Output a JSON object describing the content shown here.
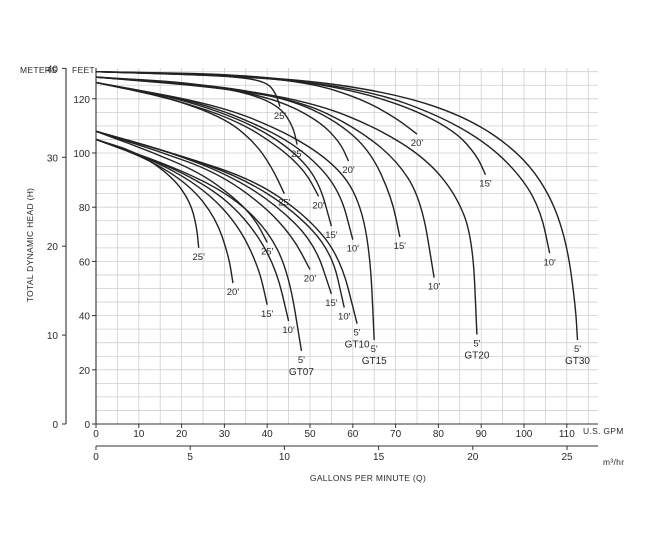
{
  "chart_data": {
    "type": "line",
    "units": {
      "meters_label": "METERS",
      "feet_label": "FEET",
      "gpm_label": "U.S. GPM",
      "m3hr_label": "m³/hr"
    },
    "xlabel": "GALLONS PER MINUTE (Q)",
    "ylabel": "TOTAL DYNAMIC HEAD (H)",
    "x_gpm_ticks": [
      0,
      10,
      20,
      30,
      40,
      50,
      60,
      70,
      80,
      90,
      100,
      110
    ],
    "x_m3hr_ticks": [
      0,
      5,
      10,
      15,
      20,
      25
    ],
    "y_feet_ticks": [
      0,
      20,
      40,
      60,
      80,
      100,
      120
    ],
    "y_meters_ticks": [
      0,
      10,
      20,
      30,
      40
    ],
    "xlim_gpm": [
      0,
      120
    ],
    "ylim_feet": [
      0,
      135
    ],
    "grid": true,
    "models": [
      "GT07",
      "GT10",
      "GT15",
      "GT20",
      "GT30"
    ],
    "series": [
      {
        "model": "GT07",
        "label": "25'",
        "points": [
          [
            0,
            105
          ],
          [
            10,
            100
          ],
          [
            18,
            91
          ],
          [
            22,
            82
          ],
          [
            23.5,
            73
          ],
          [
            24,
            65
          ]
        ]
      },
      {
        "model": "GT07",
        "label": "20'",
        "points": [
          [
            0,
            105
          ],
          [
            12,
            98
          ],
          [
            22,
            88
          ],
          [
            28,
            76
          ],
          [
            31,
            62
          ],
          [
            32,
            52
          ]
        ]
      },
      {
        "model": "GT07",
        "label": "15'",
        "points": [
          [
            0,
            105
          ],
          [
            14,
            97
          ],
          [
            25,
            87
          ],
          [
            33,
            74
          ],
          [
            38,
            58
          ],
          [
            40,
            44
          ]
        ]
      },
      {
        "model": "GT07",
        "label": "10'",
        "points": [
          [
            0,
            105
          ],
          [
            16,
            96
          ],
          [
            28,
            86
          ],
          [
            36,
            74
          ],
          [
            42,
            58
          ],
          [
            45,
            38
          ]
        ]
      },
      {
        "model": "GT07",
        "label": "5'",
        "points": [
          [
            0,
            105
          ],
          [
            18,
            95
          ],
          [
            31,
            85
          ],
          [
            40,
            72
          ],
          [
            45,
            56
          ],
          [
            48,
            27
          ]
        ]
      },
      {
        "model": "GT10",
        "label": "25'",
        "points": [
          [
            0,
            108
          ],
          [
            12,
            101
          ],
          [
            24,
            93
          ],
          [
            32,
            84
          ],
          [
            37,
            76
          ],
          [
            40,
            67
          ]
        ]
      },
      {
        "model": "GT10",
        "label": "20'",
        "points": [
          [
            0,
            108
          ],
          [
            14,
            101
          ],
          [
            28,
            93
          ],
          [
            39,
            81
          ],
          [
            46,
            69
          ],
          [
            50,
            57
          ]
        ]
      },
      {
        "model": "GT10",
        "label": "15'",
        "points": [
          [
            0,
            108
          ],
          [
            16,
            101
          ],
          [
            31,
            92
          ],
          [
            42,
            81
          ],
          [
            51,
            67
          ],
          [
            55,
            48
          ]
        ]
      },
      {
        "model": "GT10",
        "label": "10'",
        "points": [
          [
            0,
            108
          ],
          [
            18,
            100
          ],
          [
            34,
            91
          ],
          [
            46,
            79
          ],
          [
            55,
            64
          ],
          [
            58,
            43
          ]
        ]
      },
      {
        "model": "GT10",
        "label": "5'",
        "points": [
          [
            0,
            108
          ],
          [
            20,
            99
          ],
          [
            37,
            90
          ],
          [
            49,
            77
          ],
          [
            57,
            62
          ],
          [
            61,
            37
          ]
        ]
      },
      {
        "model": "GT15",
        "label": "25'",
        "points": [
          [
            0,
            126
          ],
          [
            16,
            121
          ],
          [
            30,
            113
          ],
          [
            37,
            104
          ],
          [
            41,
            95
          ],
          [
            44,
            85
          ]
        ]
      },
      {
        "model": "GT15",
        "label": "20'",
        "points": [
          [
            0,
            126
          ],
          [
            18,
            120
          ],
          [
            33,
            112
          ],
          [
            43,
            102
          ],
          [
            49,
            93
          ],
          [
            52,
            84
          ]
        ]
      },
      {
        "model": "GT15",
        "label": "15'",
        "points": [
          [
            0,
            126
          ],
          [
            20,
            120
          ],
          [
            36,
            111
          ],
          [
            46,
            101
          ],
          [
            52,
            90
          ],
          [
            55,
            73
          ]
        ]
      },
      {
        "model": "GT15",
        "label": "10'",
        "points": [
          [
            0,
            126
          ],
          [
            24,
            119
          ],
          [
            40,
            109
          ],
          [
            50,
            99
          ],
          [
            57,
            86
          ],
          [
            60,
            68
          ]
        ]
      },
      {
        "model": "GT15",
        "label": "5'",
        "points": [
          [
            0,
            126
          ],
          [
            28,
            118
          ],
          [
            44,
            108
          ],
          [
            55,
            97
          ],
          [
            61,
            85
          ],
          [
            64,
            65
          ],
          [
            65,
            31
          ]
        ]
      },
      {
        "model": "GT20",
        "label": "25'",
        "points": [
          [
            0,
            128
          ],
          [
            22,
            126
          ],
          [
            36,
            122
          ],
          [
            43,
            117
          ],
          [
            46,
            110
          ],
          [
            47,
            103
          ]
        ]
      },
      {
        "model": "GT20",
        "label": "20'",
        "points": [
          [
            0,
            128
          ],
          [
            26,
            125
          ],
          [
            42,
            120
          ],
          [
            52,
            112
          ],
          [
            57,
            104
          ],
          [
            59,
            97
          ]
        ]
      },
      {
        "model": "GT20",
        "label": "15'",
        "points": [
          [
            0,
            128
          ],
          [
            28,
            125
          ],
          [
            45,
            120
          ],
          [
            56,
            112
          ],
          [
            64,
            101
          ],
          [
            69,
            84
          ],
          [
            71,
            69
          ]
        ]
      },
      {
        "model": "GT20",
        "label": "10'",
        "points": [
          [
            0,
            128
          ],
          [
            30,
            124
          ],
          [
            48,
            119
          ],
          [
            60,
            110
          ],
          [
            70,
            98
          ],
          [
            76,
            83
          ],
          [
            79,
            54
          ]
        ]
      },
      {
        "model": "GT20",
        "label": "5'",
        "points": [
          [
            0,
            128
          ],
          [
            32,
            124
          ],
          [
            52,
            118
          ],
          [
            66,
            109
          ],
          [
            77,
            98
          ],
          [
            84,
            85
          ],
          [
            88,
            69
          ],
          [
            89,
            33
          ]
        ]
      },
      {
        "model": "GT30",
        "label": "25'",
        "points": [
          [
            0,
            130
          ],
          [
            22,
            129
          ],
          [
            34,
            128
          ],
          [
            40,
            126
          ],
          [
            42,
            122
          ],
          [
            43,
            117
          ]
        ]
      },
      {
        "model": "GT30",
        "label": "20'",
        "points": [
          [
            0,
            130
          ],
          [
            30,
            129
          ],
          [
            50,
            126
          ],
          [
            62,
            120
          ],
          [
            70,
            113
          ],
          [
            75,
            107
          ]
        ]
      },
      {
        "model": "GT30",
        "label": "15'",
        "points": [
          [
            0,
            130
          ],
          [
            36,
            129
          ],
          [
            58,
            124
          ],
          [
            73,
            117
          ],
          [
            84,
            108
          ],
          [
            89,
            99
          ],
          [
            91,
            92
          ]
        ]
      },
      {
        "model": "GT30",
        "label": "10'",
        "points": [
          [
            0,
            130
          ],
          [
            40,
            128
          ],
          [
            64,
            123
          ],
          [
            80,
            114
          ],
          [
            92,
            103
          ],
          [
            100,
            90
          ],
          [
            104,
            78
          ],
          [
            106,
            63
          ]
        ]
      },
      {
        "model": "GT30",
        "label": "5'",
        "points": [
          [
            0,
            130
          ],
          [
            44,
            128
          ],
          [
            70,
            122
          ],
          [
            87,
            113
          ],
          [
            99,
            100
          ],
          [
            106,
            85
          ],
          [
            110,
            67
          ],
          [
            112,
            44
          ],
          [
            112.5,
            31
          ]
        ]
      }
    ]
  }
}
